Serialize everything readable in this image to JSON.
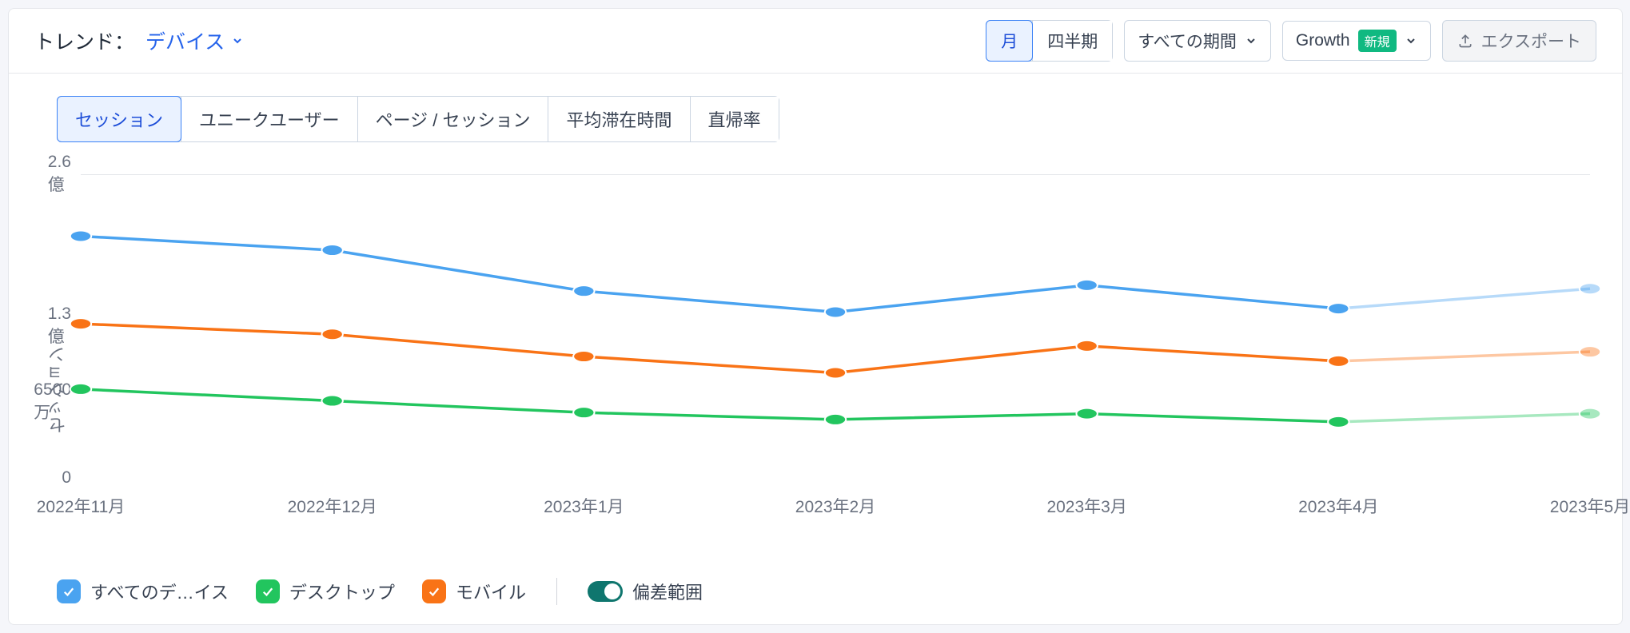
{
  "header": {
    "title_prefix": "トレンド：",
    "dimension_label": "デバイス",
    "time_toggle": {
      "monthly": "月",
      "quarterly": "四半期",
      "active": "monthly"
    },
    "range_dropdown": "すべての期間",
    "growth_dropdown": "Growth",
    "growth_badge": "新規",
    "export_label": "エクスポート"
  },
  "metrics_tabs": {
    "items": [
      "セッション",
      "ユニークユーザー",
      "ページ / セッション",
      "平均滞在時間",
      "直帰率"
    ],
    "active_index": 0
  },
  "chart": {
    "type": "line",
    "ylabel": "セッション",
    "ylim": [
      0,
      260000000
    ],
    "yticks": [
      {
        "value": 260000000,
        "label": "2.6億"
      },
      {
        "value": 130000000,
        "label": "1.3億"
      },
      {
        "value": 65000000,
        "label": "6500万"
      },
      {
        "value": 0,
        "label": "0"
      }
    ],
    "x_categories": [
      "2022年11月",
      "2022年12月",
      "2023年1月",
      "2023年2月",
      "2023年3月",
      "2023年4月",
      "2023年5月"
    ],
    "series": [
      {
        "id": "all",
        "name": "すべてのデ…イス",
        "color": "#4aa3f0",
        "values": [
          207000000,
          195000000,
          160000000,
          142000000,
          165000000,
          145000000,
          162000000
        ],
        "last_faded": true
      },
      {
        "id": "desktop",
        "name": "デスクトップ",
        "color": "#22c55e",
        "values": [
          76000000,
          66000000,
          56000000,
          50000000,
          55000000,
          48000000,
          55000000
        ],
        "last_faded": true
      },
      {
        "id": "mobile",
        "name": "モバイル",
        "color": "#f97316",
        "values": [
          132000000,
          123000000,
          104000000,
          90000000,
          113000000,
          100000000,
          108000000
        ],
        "last_faded": true
      }
    ],
    "marker_radius": 7,
    "line_width": 3.5,
    "grid_color": "#e5e7eb",
    "background_color": "#ffffff"
  },
  "legend": {
    "all": "すべてのデ…イス",
    "desktop": "デスクトップ",
    "mobile": "モバイル",
    "deviation_label": "偏差範囲",
    "deviation_on": true,
    "colors": {
      "all": "#4aa3f0",
      "desktop": "#22c55e",
      "mobile": "#f97316",
      "toggle_on": "#0f766e"
    }
  }
}
